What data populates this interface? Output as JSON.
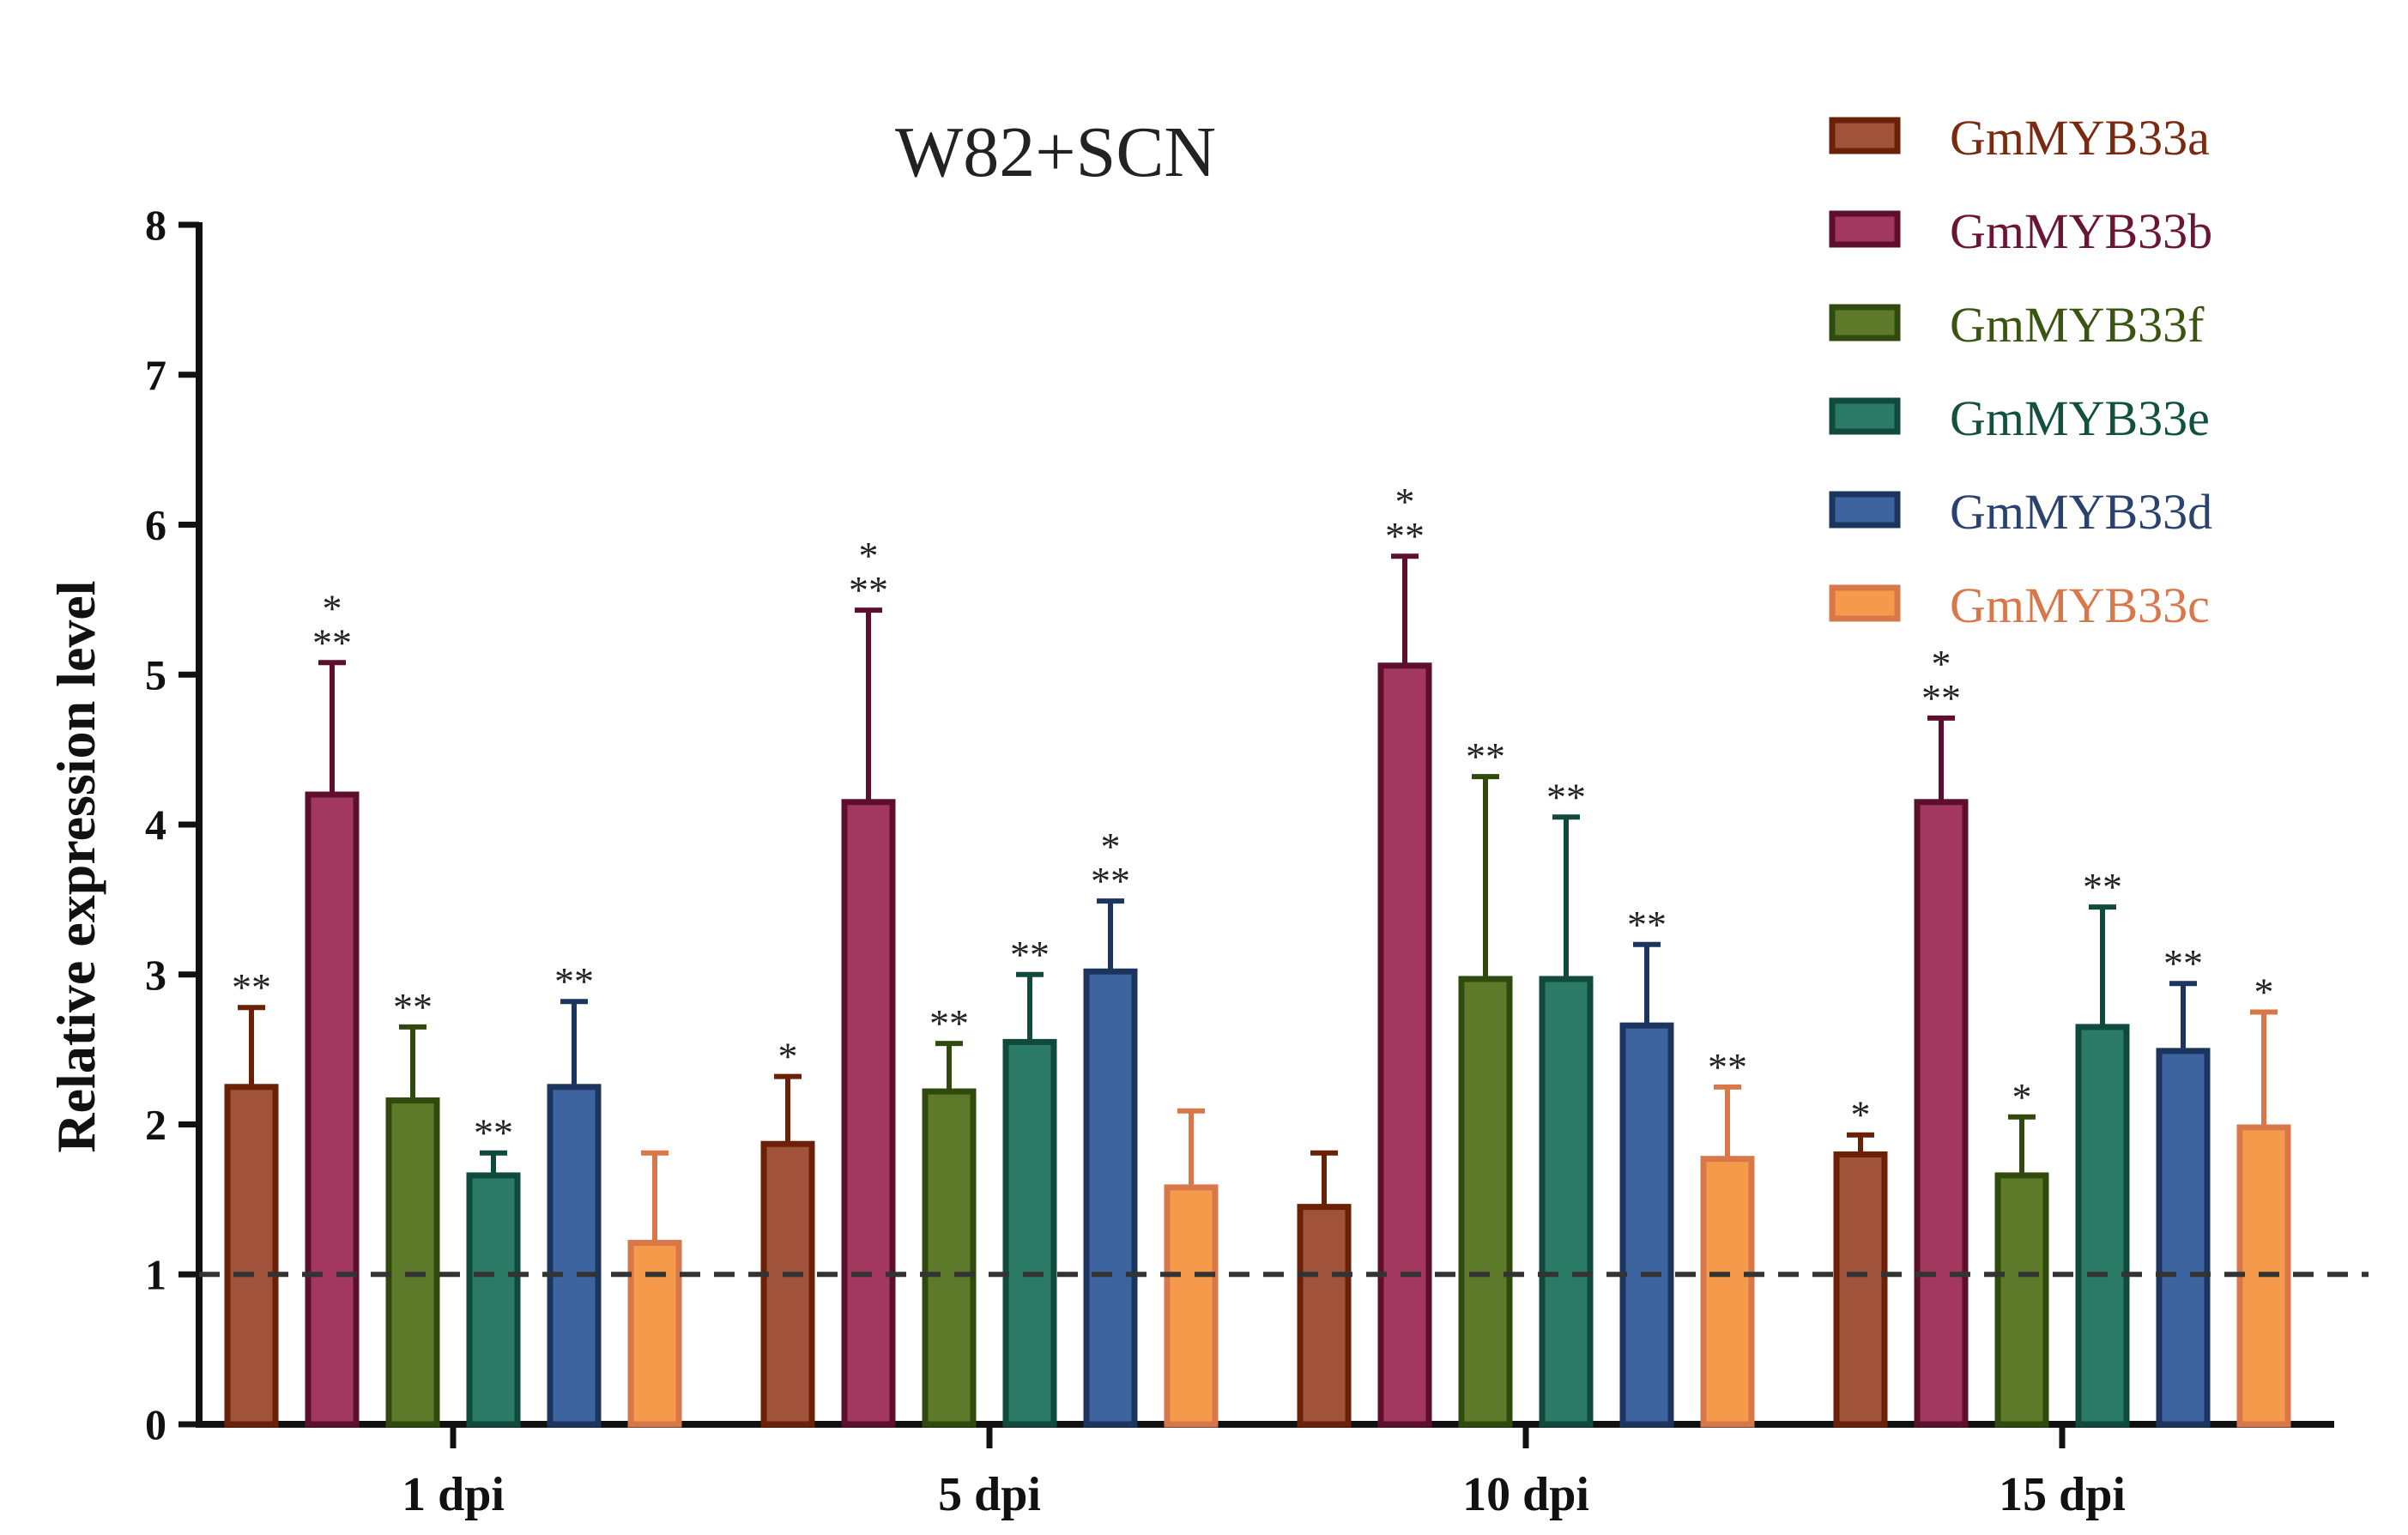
{
  "chart_data": {
    "type": "bar",
    "title": "W82+SCN",
    "xlabel": "",
    "ylabel": "Relative expression level",
    "ylim": [
      0,
      8
    ],
    "yticks": [
      "0",
      "1",
      "2",
      "3",
      "4",
      "5",
      "6",
      "7",
      "8"
    ],
    "reference_line": 1,
    "legend_position": "top-right",
    "categories": [
      "1 dpi",
      "5 dpi",
      "10 dpi",
      "15 dpi"
    ],
    "series": [
      {
        "name": "GmMYB33a",
        "color": "#A0523A",
        "edge": "#6B2008",
        "label_color": "#7A2A10",
        "values": [
          2.25,
          1.87,
          1.45,
          1.8
        ],
        "errors": [
          0.53,
          0.45,
          0.36,
          0.13
        ],
        "sig": [
          "**",
          "*",
          "",
          "*"
        ]
      },
      {
        "name": "GmMYB33b",
        "color": "#A3385E",
        "edge": "#5E0F2E",
        "label_color": "#6A1535",
        "values": [
          4.2,
          4.15,
          5.06,
          4.15
        ],
        "errors": [
          0.88,
          1.28,
          0.73,
          0.56
        ],
        "sig": [
          "***",
          "***",
          "***",
          "***"
        ]
      },
      {
        "name": "GmMYB33f",
        "color": "#5C7A2A",
        "edge": "#2F4A0C",
        "label_color": "#3A5510",
        "values": [
          2.16,
          2.22,
          2.97,
          1.66
        ],
        "errors": [
          0.49,
          0.32,
          1.35,
          0.39
        ],
        "sig": [
          "**",
          "**",
          "**",
          "*"
        ]
      },
      {
        "name": "GmMYB33e",
        "color": "#2A7A66",
        "edge": "#0F4A3C",
        "label_color": "#12503F",
        "values": [
          1.66,
          2.55,
          2.97,
          2.65
        ],
        "errors": [
          0.15,
          0.45,
          1.08,
          0.8
        ],
        "sig": [
          "**",
          "**",
          "**",
          "**"
        ]
      },
      {
        "name": "GmMYB33d",
        "color": "#3E64A0",
        "edge": "#1C355E",
        "label_color": "#2A4270",
        "values": [
          2.25,
          3.02,
          2.66,
          2.49
        ],
        "errors": [
          0.57,
          0.47,
          0.54,
          0.45
        ],
        "sig": [
          "**",
          "***",
          "**",
          "**"
        ]
      },
      {
        "name": "GmMYB33c",
        "color": "#F59A4A",
        "edge": "#D8784A",
        "label_color": "#D8784A",
        "values": [
          1.21,
          1.58,
          1.77,
          1.98
        ],
        "errors": [
          0.6,
          0.51,
          0.48,
          0.77
        ],
        "sig": [
          "",
          "",
          "**",
          "*"
        ]
      }
    ]
  }
}
